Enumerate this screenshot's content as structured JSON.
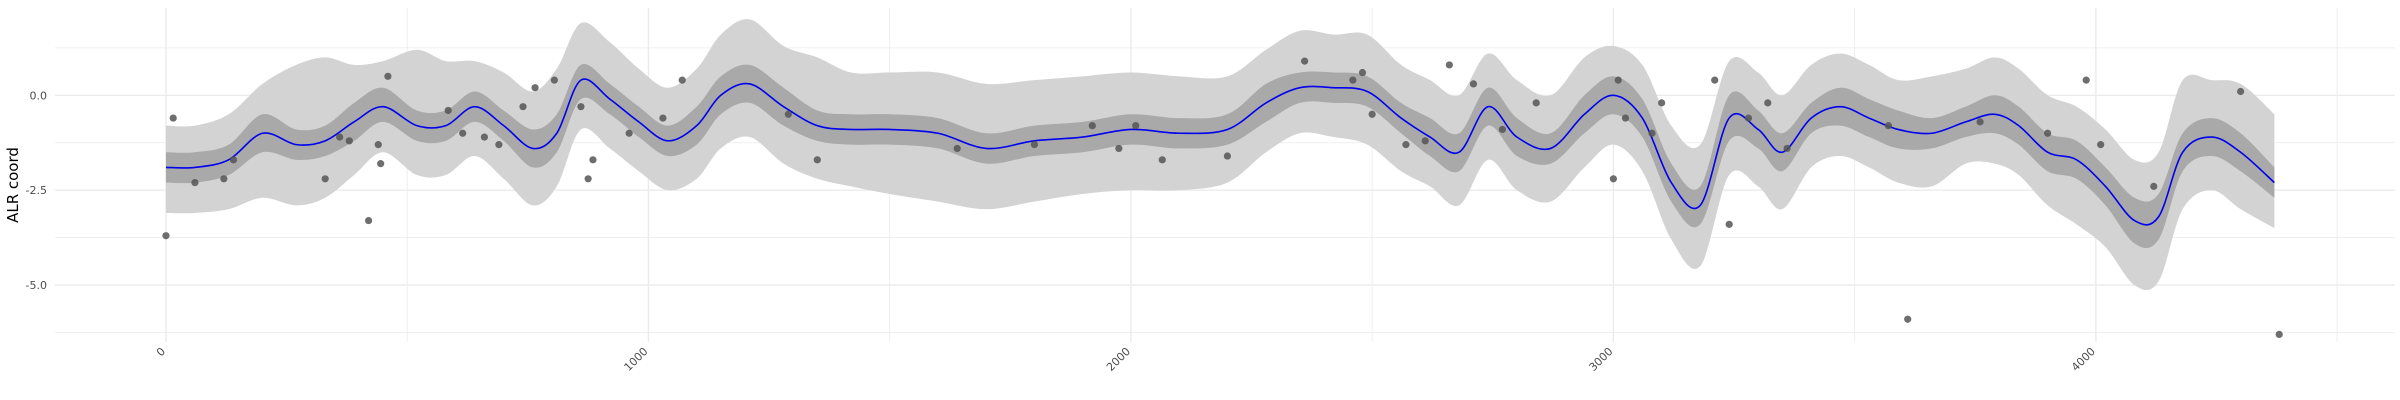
{
  "chart_data": {
    "type": "line",
    "title": "",
    "xlabel": "",
    "ylabel": "ALR coord",
    "xlim": [
      -230,
      4620
    ],
    "ylim": [
      -6.5,
      2.3
    ],
    "x_ticks": [
      {
        "value": 0,
        "label": "0"
      },
      {
        "value": 1000,
        "label": "1000"
      },
      {
        "value": 2000,
        "label": "2000"
      },
      {
        "value": 3000,
        "label": "3000"
      },
      {
        "value": 4000,
        "label": "4000"
      }
    ],
    "y_ticks": [
      {
        "value": 0,
        "label": "0.0"
      },
      {
        "value": -2.5,
        "label": "-2.5"
      },
      {
        "value": -5,
        "label": "-5.0"
      }
    ],
    "grid": true,
    "legend": "none",
    "colors": {
      "line": "#0000ee",
      "band_inner": "#a9a9a9",
      "band_outer": "#d3d3d3",
      "points": "#555555",
      "grid": "#ebebeb"
    },
    "series": [
      {
        "kind": "line",
        "x": [
          0,
          60,
          130,
          200,
          270,
          330,
          390,
          450,
          520,
          580,
          640,
          700,
          760,
          810,
          860,
          920,
          980,
          1040,
          1100,
          1150,
          1210,
          1280,
          1350,
          1420,
          1500,
          1600,
          1700,
          1800,
          1900,
          2000,
          2100,
          2200,
          2280,
          2350,
          2420,
          2490,
          2560,
          2620,
          2680,
          2740,
          2800,
          2870,
          2940,
          3000,
          3060,
          3120,
          3180,
          3240,
          3300,
          3350,
          3410,
          3470,
          3530,
          3590,
          3660,
          3730,
          3790,
          3840,
          3900,
          3960,
          4020,
          4080,
          4130,
          4180,
          4240,
          4300,
          4370
        ],
        "y": [
          -1.9,
          -1.9,
          -1.7,
          -1.0,
          -1.3,
          -1.2,
          -0.7,
          -0.3,
          -0.8,
          -0.8,
          -0.3,
          -0.8,
          -1.4,
          -1.0,
          0.4,
          -0.1,
          -0.7,
          -1.2,
          -0.8,
          0.0,
          0.3,
          -0.3,
          -0.8,
          -0.9,
          -0.9,
          -1.0,
          -1.4,
          -1.2,
          -1.1,
          -0.9,
          -1.0,
          -0.9,
          -0.2,
          0.2,
          0.2,
          0.1,
          -0.6,
          -1.1,
          -1.5,
          -0.3,
          -1.1,
          -1.4,
          -0.5,
          0.0,
          -0.6,
          -2.3,
          -2.9,
          -0.6,
          -0.9,
          -1.5,
          -0.6,
          -0.3,
          -0.6,
          -0.9,
          -1.0,
          -0.7,
          -0.5,
          -0.8,
          -1.5,
          -1.7,
          -2.4,
          -3.3,
          -3.2,
          -1.5,
          -1.1,
          -1.5,
          -2.3
        ]
      },
      {
        "kind": "band_inner",
        "x": [
          0,
          60,
          130,
          200,
          270,
          330,
          390,
          450,
          520,
          580,
          640,
          700,
          760,
          810,
          860,
          920,
          980,
          1040,
          1100,
          1150,
          1210,
          1280,
          1350,
          1420,
          1500,
          1600,
          1700,
          1800,
          1900,
          2000,
          2100,
          2200,
          2280,
          2350,
          2420,
          2490,
          2560,
          2620,
          2680,
          2740,
          2800,
          2870,
          2940,
          3000,
          3060,
          3120,
          3180,
          3240,
          3300,
          3350,
          3410,
          3470,
          3530,
          3590,
          3660,
          3730,
          3790,
          3840,
          3900,
          3960,
          4020,
          4080,
          4130,
          4180,
          4240,
          4300,
          4370
        ],
        "low": [
          -2.3,
          -2.3,
          -2.1,
          -1.5,
          -1.7,
          -1.6,
          -1.2,
          -0.7,
          -1.2,
          -1.2,
          -0.7,
          -1.2,
          -1.9,
          -1.5,
          -0.1,
          -0.5,
          -1.1,
          -1.6,
          -1.3,
          -0.5,
          -0.2,
          -0.8,
          -1.2,
          -1.3,
          -1.3,
          -1.4,
          -1.8,
          -1.6,
          -1.5,
          -1.3,
          -1.4,
          -1.3,
          -0.7,
          -0.2,
          -0.2,
          -0.3,
          -1.0,
          -1.6,
          -2.0,
          -0.8,
          -1.6,
          -1.8,
          -1.0,
          -0.5,
          -1.1,
          -2.8,
          -3.4,
          -1.2,
          -1.4,
          -2.0,
          -1.0,
          -0.8,
          -1.1,
          -1.4,
          -1.4,
          -1.1,
          -1.0,
          -1.3,
          -2.0,
          -2.2,
          -2.9,
          -3.9,
          -3.8,
          -2.0,
          -1.6,
          -2.0,
          -2.7
        ],
        "high": [
          -1.5,
          -1.5,
          -1.3,
          -0.5,
          -0.9,
          -0.8,
          -0.2,
          0.2,
          -0.4,
          -0.4,
          0.1,
          -0.4,
          -0.9,
          -0.5,
          0.8,
          0.3,
          -0.3,
          -0.8,
          -0.3,
          0.5,
          0.8,
          0.2,
          -0.4,
          -0.5,
          -0.5,
          -0.6,
          -1.0,
          -0.8,
          -0.7,
          -0.5,
          -0.6,
          -0.5,
          0.3,
          0.6,
          0.6,
          0.5,
          -0.2,
          -0.6,
          -1.0,
          0.2,
          -0.6,
          -1.0,
          0.0,
          0.5,
          -0.1,
          -1.8,
          -2.4,
          0.0,
          -0.4,
          -1.0,
          -0.2,
          0.2,
          -0.1,
          -0.4,
          -0.6,
          -0.3,
          0.0,
          -0.3,
          -1.0,
          -1.2,
          -1.9,
          -2.7,
          -2.6,
          -1.0,
          -0.6,
          -1.0,
          -1.9
        ]
      },
      {
        "kind": "band_outer",
        "x": [
          0,
          60,
          130,
          200,
          270,
          330,
          390,
          450,
          520,
          580,
          640,
          700,
          760,
          810,
          860,
          920,
          980,
          1040,
          1100,
          1150,
          1210,
          1280,
          1350,
          1420,
          1500,
          1600,
          1700,
          1800,
          1900,
          2000,
          2100,
          2200,
          2280,
          2350,
          2420,
          2490,
          2560,
          2620,
          2680,
          2740,
          2800,
          2870,
          2940,
          3000,
          3060,
          3120,
          3180,
          3240,
          3300,
          3350,
          3410,
          3470,
          3530,
          3590,
          3660,
          3730,
          3790,
          3840,
          3900,
          3960,
          4020,
          4080,
          4130,
          4180,
          4240,
          4300,
          4370
        ],
        "low": [
          -3.1,
          -3.1,
          -3.0,
          -2.7,
          -2.9,
          -2.7,
          -2.1,
          -1.5,
          -2.1,
          -2.1,
          -1.6,
          -2.2,
          -2.9,
          -2.4,
          -0.9,
          -1.4,
          -2.0,
          -2.5,
          -2.2,
          -1.4,
          -1.1,
          -1.8,
          -2.2,
          -2.4,
          -2.6,
          -2.8,
          -3.0,
          -2.8,
          -2.6,
          -2.5,
          -2.5,
          -2.3,
          -1.5,
          -1.0,
          -1.1,
          -1.3,
          -2.0,
          -2.4,
          -2.9,
          -1.7,
          -2.5,
          -2.8,
          -1.9,
          -1.3,
          -2.0,
          -3.8,
          -4.5,
          -2.1,
          -2.4,
          -3.0,
          -1.9,
          -1.6,
          -1.9,
          -2.3,
          -2.4,
          -1.8,
          -1.8,
          -2.1,
          -2.9,
          -3.4,
          -4.0,
          -5.0,
          -4.9,
          -3.0,
          -2.5,
          -3.0,
          -3.5
        ],
        "high": [
          -0.8,
          -0.8,
          -0.5,
          0.3,
          0.8,
          1.0,
          0.8,
          0.9,
          1.2,
          0.9,
          0.9,
          0.6,
          0.1,
          0.7,
          1.9,
          1.4,
          0.7,
          0.2,
          0.7,
          1.6,
          2.0,
          1.3,
          1.0,
          0.6,
          0.6,
          0.6,
          0.3,
          0.4,
          0.5,
          0.6,
          0.5,
          0.5,
          1.2,
          1.7,
          1.6,
          1.6,
          0.8,
          0.4,
          0.0,
          1.1,
          0.4,
          0.0,
          1.0,
          1.3,
          0.8,
          -0.8,
          -1.3,
          0.9,
          0.6,
          0.0,
          0.8,
          1.1,
          0.8,
          0.4,
          0.5,
          0.7,
          1.0,
          0.7,
          0.0,
          -0.3,
          -0.9,
          -1.7,
          -1.5,
          0.4,
          0.4,
          0.3,
          -0.5
        ]
      },
      {
        "kind": "points",
        "x": [
          0,
          15,
          60,
          120,
          140,
          330,
          360,
          380,
          420,
          440,
          445,
          460,
          585,
          615,
          660,
          690,
          740,
          765,
          805,
          860,
          875,
          885,
          960,
          1030,
          1070,
          1290,
          1350,
          1640,
          1800,
          1920,
          1975,
          2010,
          2065,
          2200,
          2360,
          2460,
          2480,
          2500,
          2570,
          2610,
          2660,
          2710,
          2770,
          2840,
          3000,
          3010,
          3025,
          3080,
          3100,
          3210,
          3240,
          3280,
          3320,
          3360,
          3570,
          3610,
          3760,
          3900,
          3980,
          4010,
          4120,
          4300,
          4380
        ],
        "y": [
          -3.7,
          -0.6,
          -2.3,
          -2.2,
          -1.7,
          -2.2,
          -1.1,
          -1.2,
          -3.3,
          -1.3,
          -1.8,
          0.5,
          -0.4,
          -1.0,
          -1.1,
          -1.3,
          -0.3,
          0.2,
          0.4,
          -0.3,
          -2.2,
          -1.7,
          -1.0,
          -0.6,
          0.4,
          -0.5,
          -1.7,
          -1.4,
          -1.3,
          -0.8,
          -1.4,
          -0.8,
          -1.7,
          -1.6,
          0.9,
          0.4,
          0.6,
          -0.5,
          -1.3,
          -1.2,
          0.8,
          0.3,
          -0.9,
          -0.2,
          -2.2,
          0.4,
          -0.6,
          -1.0,
          -0.2,
          0.4,
          -3.4,
          -0.6,
          -0.2,
          -1.4,
          -0.8,
          -5.9,
          -0.7,
          -1.0,
          0.4,
          -1.3,
          -2.4,
          0.1,
          -6.3
        ]
      }
    ]
  }
}
